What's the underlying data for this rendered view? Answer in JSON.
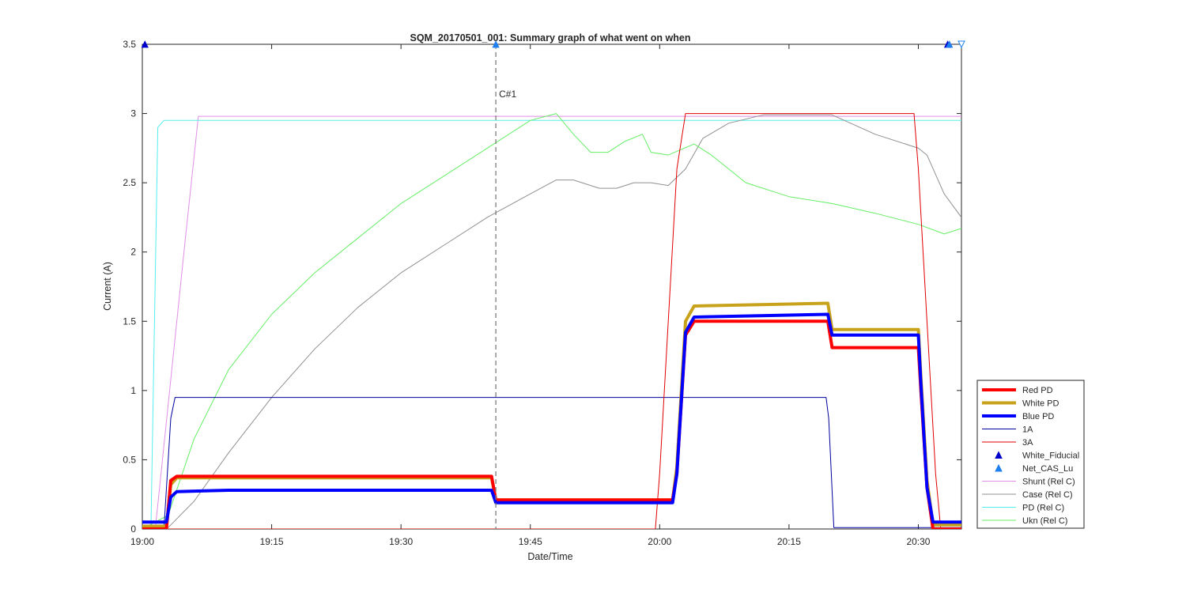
{
  "chart_data": {
    "type": "line",
    "title": "SQM_20170501_001: Summary graph of what went on when",
    "xlabel": "Date/Time",
    "ylabel": "Current (A)",
    "xlim": [
      "19:00",
      "20:35"
    ],
    "ylim": [
      0,
      3.5
    ],
    "x_ticks": [
      "19:00",
      "19:15",
      "19:30",
      "19:45",
      "20:00",
      "20:15",
      "20:30"
    ],
    "y_ticks": [
      "0",
      "0.5",
      "1",
      "1.5",
      "2",
      "2.5",
      "3",
      "3.5"
    ],
    "grid": false,
    "legend_position": "right-bottom",
    "annotation": {
      "label": "C#1",
      "x": "19:41"
    },
    "series": [
      {
        "name": "Red PD",
        "color": "#ff0000",
        "style": "thick",
        "points": [
          [
            "19:00",
            0.0
          ],
          [
            "19:02.8",
            0.0
          ],
          [
            "19:03.3",
            0.35
          ],
          [
            "19:04",
            0.38
          ],
          [
            "19:40.5",
            0.38
          ],
          [
            "19:41",
            0.21
          ],
          [
            "20:01.5",
            0.21
          ],
          [
            "20:02",
            0.4
          ],
          [
            "20:03",
            1.4
          ],
          [
            "20:04",
            1.5
          ],
          [
            "20:19.5",
            1.5
          ],
          [
            "20:20",
            1.31
          ],
          [
            "20:30",
            1.31
          ],
          [
            "20:30.3",
            1.0
          ],
          [
            "20:31",
            0.3
          ],
          [
            "20:31.7",
            0.0
          ],
          [
            "20:35",
            0.0
          ]
        ]
      },
      {
        "name": "White PD",
        "color": "#c8a21a",
        "style": "thick",
        "points": [
          [
            "19:00",
            0.02
          ],
          [
            "19:02.8",
            0.02
          ],
          [
            "19:03.3",
            0.32
          ],
          [
            "19:04",
            0.37
          ],
          [
            "19:40.5",
            0.37
          ],
          [
            "19:41",
            0.21
          ],
          [
            "20:01.5",
            0.21
          ],
          [
            "20:02",
            0.45
          ],
          [
            "20:03",
            1.5
          ],
          [
            "20:04",
            1.61
          ],
          [
            "20:19.5",
            1.63
          ],
          [
            "20:20",
            1.44
          ],
          [
            "20:30",
            1.44
          ],
          [
            "20:30.3",
            1.1
          ],
          [
            "20:31",
            0.35
          ],
          [
            "20:31.7",
            0.03
          ],
          [
            "20:35",
            0.03
          ]
        ]
      },
      {
        "name": "Blue PD",
        "color": "#0000ff",
        "style": "thick",
        "points": [
          [
            "19:00",
            0.05
          ],
          [
            "19:02.8",
            0.05
          ],
          [
            "19:03.3",
            0.23
          ],
          [
            "19:04",
            0.27
          ],
          [
            "19:10",
            0.28
          ],
          [
            "19:40.5",
            0.28
          ],
          [
            "19:41",
            0.19
          ],
          [
            "20:01.5",
            0.19
          ],
          [
            "20:02",
            0.4
          ],
          [
            "20:03",
            1.42
          ],
          [
            "20:04",
            1.53
          ],
          [
            "20:19.5",
            1.55
          ],
          [
            "20:20",
            1.4
          ],
          [
            "20:30",
            1.4
          ],
          [
            "20:30.3",
            1.05
          ],
          [
            "20:31",
            0.3
          ],
          [
            "20:31.7",
            0.05
          ],
          [
            "20:35",
            0.05
          ]
        ]
      },
      {
        "name": "1A",
        "color": "#0000a0",
        "style": "thin",
        "points": [
          [
            "19:00",
            0.0
          ],
          [
            "19:02.5",
            0.0
          ],
          [
            "19:03.3",
            0.8
          ],
          [
            "19:03.8",
            0.95
          ],
          [
            "20:19.3",
            0.95
          ],
          [
            "20:19.6",
            0.8
          ],
          [
            "20:20.2",
            0.01
          ],
          [
            "20:35",
            0.01
          ]
        ]
      },
      {
        "name": "3A",
        "color": "#e00000",
        "style": "thin",
        "points": [
          [
            "19:00",
            0.0
          ],
          [
            "19:59.5",
            0.0
          ],
          [
            "20:00",
            0.4
          ],
          [
            "20:02",
            2.6
          ],
          [
            "20:03",
            3.0
          ],
          [
            "20:29.5",
            3.0
          ],
          [
            "20:30",
            2.6
          ],
          [
            "20:32",
            0.4
          ],
          [
            "20:32.6",
            0.0
          ],
          [
            "20:35",
            0.0
          ]
        ]
      },
      {
        "name": "White_Fiducial",
        "color": "#0000cc",
        "marker": "triangle-up",
        "points": [
          [
            "19:00.3",
            3.5
          ],
          [
            "20:33.4",
            3.5
          ]
        ]
      },
      {
        "name": "Net_CAS_Lu",
        "color": "#1e7ff0",
        "marker": "triangle-up",
        "points": [
          [
            "19:41",
            3.5
          ],
          [
            "20:33.6",
            3.5
          ]
        ]
      },
      {
        "name": "Shunt (Rel C)",
        "color": "#e08ee8",
        "style": "thin",
        "points": [
          [
            "19:00",
            0.0
          ],
          [
            "19:01.5",
            0.0
          ],
          [
            "19:05",
            2.1
          ],
          [
            "19:06.5",
            2.98
          ],
          [
            "20:35",
            2.98
          ]
        ]
      },
      {
        "name": "Case (Rel C)",
        "color": "#909090",
        "style": "thin",
        "points": [
          [
            "19:00",
            0.0
          ],
          [
            "19:03",
            0.01
          ],
          [
            "19:06",
            0.2
          ],
          [
            "19:10",
            0.55
          ],
          [
            "19:15",
            0.95
          ],
          [
            "19:20",
            1.3
          ],
          [
            "19:25",
            1.6
          ],
          [
            "19:30",
            1.85
          ],
          [
            "19:35",
            2.05
          ],
          [
            "19:40",
            2.25
          ],
          [
            "19:45",
            2.42
          ],
          [
            "19:48",
            2.52
          ],
          [
            "19:50",
            2.52
          ],
          [
            "19:53",
            2.46
          ],
          [
            "19:55",
            2.46
          ],
          [
            "19:57",
            2.5
          ],
          [
            "19:59",
            2.5
          ],
          [
            "20:01",
            2.48
          ],
          [
            "20:03",
            2.6
          ],
          [
            "20:05",
            2.82
          ],
          [
            "20:08",
            2.93
          ],
          [
            "20:12",
            2.99
          ],
          [
            "20:20",
            2.99
          ],
          [
            "20:25",
            2.85
          ],
          [
            "20:30",
            2.75
          ],
          [
            "20:31",
            2.7
          ],
          [
            "20:33",
            2.42
          ],
          [
            "20:35",
            2.25
          ]
        ]
      },
      {
        "name": "PD (Rel C)",
        "color": "#55eeee",
        "style": "thin",
        "points": [
          [
            "19:00",
            0.0
          ],
          [
            "19:01",
            0.0
          ],
          [
            "19:01.8",
            2.9
          ],
          [
            "19:02.5",
            2.95
          ],
          [
            "20:35",
            2.95
          ]
        ]
      },
      {
        "name": "Ukn (Rel C)",
        "color": "#66ee66",
        "style": "thin",
        "points": [
          [
            "19:00",
            0.0
          ],
          [
            "19:03",
            0.1
          ],
          [
            "19:06",
            0.65
          ],
          [
            "19:10",
            1.15
          ],
          [
            "19:15",
            1.55
          ],
          [
            "19:20",
            1.85
          ],
          [
            "19:25",
            2.1
          ],
          [
            "19:30",
            2.35
          ],
          [
            "19:35",
            2.55
          ],
          [
            "19:40",
            2.75
          ],
          [
            "19:45",
            2.95
          ],
          [
            "19:48",
            3.0
          ],
          [
            "19:50",
            2.85
          ],
          [
            "19:52",
            2.72
          ],
          [
            "19:54",
            2.72
          ],
          [
            "19:56",
            2.8
          ],
          [
            "19:58",
            2.85
          ],
          [
            "19:59",
            2.72
          ],
          [
            "20:01",
            2.7
          ],
          [
            "20:04",
            2.78
          ],
          [
            "20:06",
            2.7
          ],
          [
            "20:10",
            2.5
          ],
          [
            "20:15",
            2.4
          ],
          [
            "20:20",
            2.35
          ],
          [
            "20:25",
            2.28
          ],
          [
            "20:30",
            2.2
          ],
          [
            "20:33",
            2.13
          ],
          [
            "20:35",
            2.17
          ]
        ]
      }
    ]
  }
}
